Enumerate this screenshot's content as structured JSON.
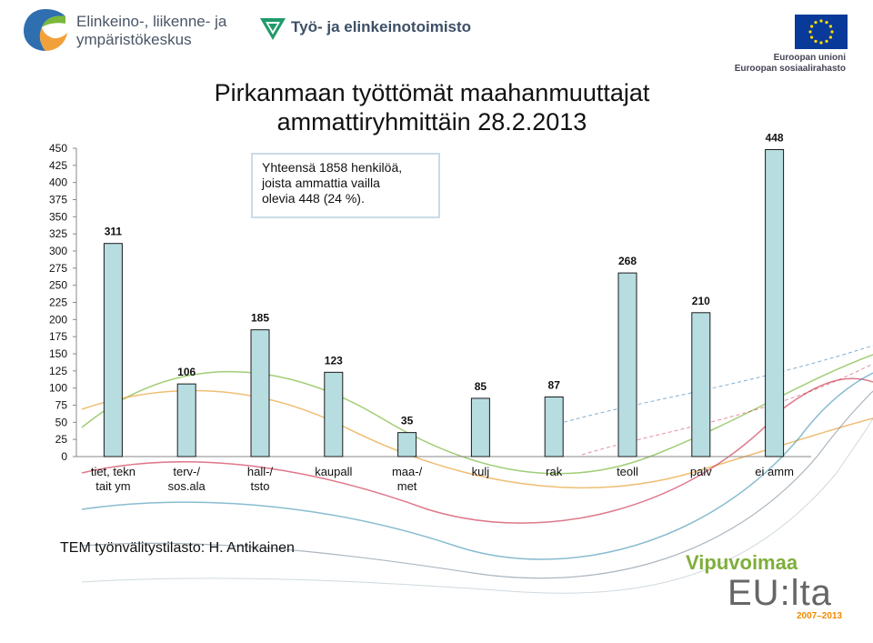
{
  "header": {
    "ely_logo_line1": "Elinkeino-, liikenne- ja",
    "ely_logo_line2": "ympäristökeskus",
    "te_logo_text": "Työ- ja elinkeinotoimisto",
    "eu_line1": "Euroopan unioni",
    "eu_line2": "Euroopan sosiaalirahasto"
  },
  "title_line1": "Pirkanmaan työttömät maahanmuuttajat",
  "title_line2": "ammattiryhmittäin 28.2.2013",
  "annotation": {
    "line1": "Yhteensä 1858 henkilöä,",
    "line2": "joista ammattia vailla",
    "line3": "olevia 448 (24 %)."
  },
  "source": "TEM työnvälitystilasto: H. Antikainen",
  "footer_logo": {
    "line1": "Vipuvoimaa",
    "line2": "EU:lta",
    "years": "2007–2013"
  },
  "colors": {
    "bar_fill": "#b7dde1",
    "bar_stroke": "#1a1a1a",
    "eu_blue": "#0a3a99",
    "eu_star": "#ffdd00",
    "vip_green": "#7fae3a",
    "vip_orange": "#f08a00"
  },
  "chart_data": {
    "type": "bar",
    "categories": [
      [
        "tiet, tekn",
        "tait ym"
      ],
      [
        "terv-/",
        "sos.ala"
      ],
      [
        "hall-/",
        "tsto"
      ],
      [
        "kaupall"
      ],
      [
        "maa-/",
        "met"
      ],
      [
        "kulj"
      ],
      [
        "rak"
      ],
      [
        "teoll"
      ],
      [
        "palv"
      ],
      [
        "ei amm"
      ]
    ],
    "values": [
      311,
      106,
      185,
      123,
      35,
      85,
      87,
      268,
      210,
      448
    ],
    "ylim": [
      0,
      450
    ],
    "yticks": [
      0,
      25,
      50,
      75,
      100,
      125,
      150,
      175,
      200,
      225,
      250,
      275,
      300,
      325,
      350,
      375,
      400,
      425,
      450
    ],
    "grid": false,
    "legend": "none"
  }
}
